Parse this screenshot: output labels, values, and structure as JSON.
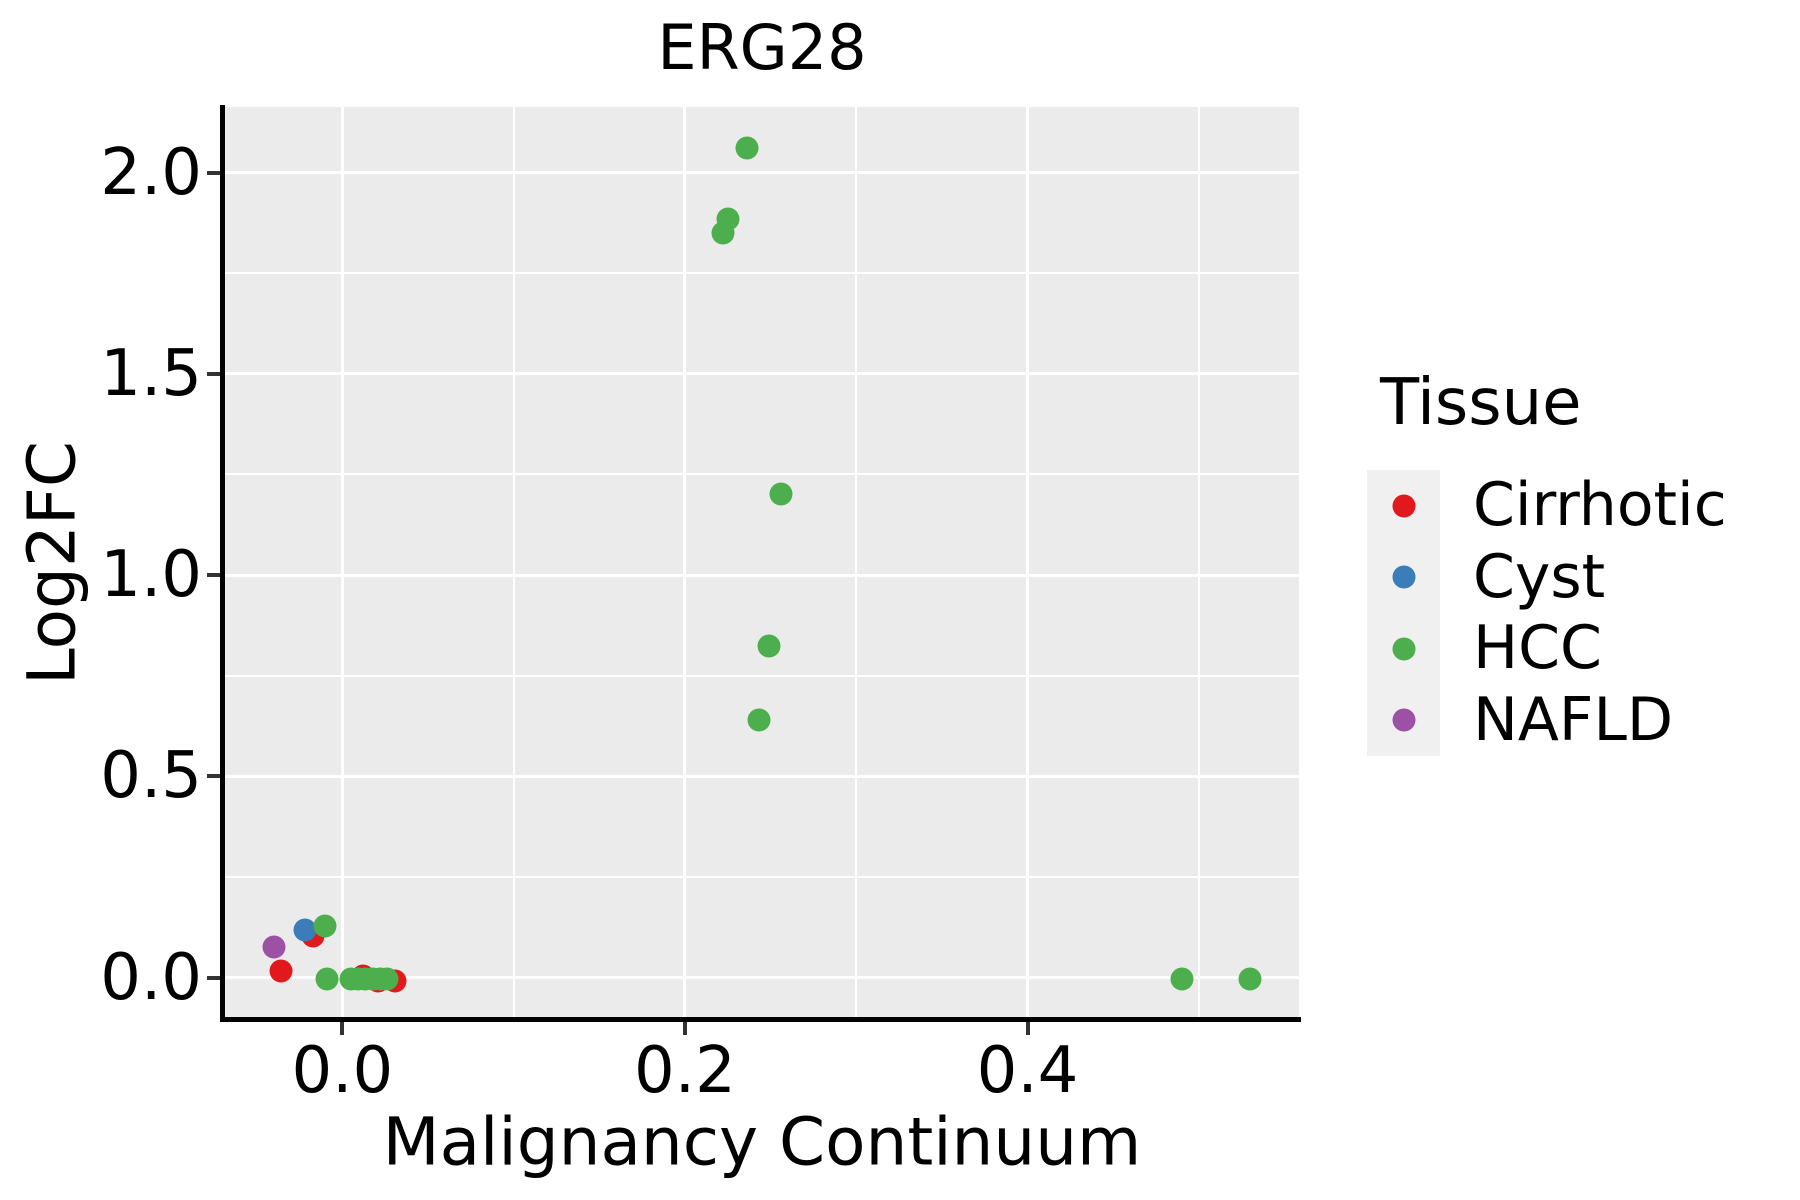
{
  "title": "ERG28",
  "axes": {
    "x": {
      "label": "Malignancy Continuum",
      "tick_labels": [
        "0.0",
        "0.2",
        "0.4"
      ],
      "tick_values": [
        0.0,
        0.2,
        0.4
      ],
      "minor_values": [
        0.1,
        0.3,
        0.5
      ],
      "range": [
        -0.0685,
        0.5585
      ]
    },
    "y": {
      "label": "Log2FC",
      "tick_labels": [
        "0.0",
        "0.5",
        "1.0",
        "1.5",
        "2.0"
      ],
      "tick_values": [
        0.0,
        0.5,
        1.0,
        1.5,
        2.0
      ],
      "minor_values": [
        0.25,
        0.75,
        1.25,
        1.75
      ],
      "range": [
        -0.103,
        2.163
      ]
    }
  },
  "legend": {
    "title": "Tissue",
    "entries": [
      {
        "label": "Cirrhotic",
        "color": "#E2191C"
      },
      {
        "label": "Cyst",
        "color": "#3A7DB8"
      },
      {
        "label": "HCC",
        "color": "#4CAE4C"
      },
      {
        "label": "NAFLD",
        "color": "#9C51A5"
      }
    ]
  },
  "colors": {
    "panel_background": "#EBEBEB",
    "gridline": "#FFFFFF",
    "legend_key_background": "#F0F0F0",
    "axis_line": "#000000",
    "text": "#000000"
  },
  "chart_data": {
    "type": "scatter",
    "title": "ERG28",
    "xlabel": "Malignancy Continuum",
    "ylabel": "Log2FC",
    "xlim": [
      -0.0685,
      0.5585
    ],
    "ylim": [
      -0.103,
      2.163
    ],
    "x_major_ticks": [
      0.0,
      0.2,
      0.4
    ],
    "y_major_ticks": [
      0.0,
      0.5,
      1.0,
      1.5,
      2.0
    ],
    "grid": true,
    "legend_title": "Tissue",
    "legend_position": "right",
    "series": [
      {
        "name": "Cirrhotic",
        "color": "#E2191C",
        "points": [
          [
            -0.036,
            0.016
          ],
          [
            -0.017,
            0.103
          ],
          [
            0.012,
            0.005
          ],
          [
            0.021,
            -0.008
          ],
          [
            0.031,
            -0.008
          ]
        ]
      },
      {
        "name": "Cyst",
        "color": "#3A7DB8",
        "points": [
          [
            -0.022,
            0.118
          ]
        ]
      },
      {
        "name": "HCC",
        "color": "#4CAE4C",
        "points": [
          [
            -0.01,
            0.128
          ],
          [
            -0.009,
            -0.004
          ],
          [
            0.005,
            -0.004
          ],
          [
            0.009,
            -0.004
          ],
          [
            0.013,
            -0.004
          ],
          [
            0.018,
            -0.004
          ],
          [
            0.022,
            -0.004
          ],
          [
            0.026,
            -0.004
          ],
          [
            0.222,
            1.85
          ],
          [
            0.225,
            1.885
          ],
          [
            0.236,
            2.06
          ],
          [
            0.243,
            0.641
          ],
          [
            0.249,
            0.825
          ],
          [
            0.256,
            1.202
          ],
          [
            0.49,
            -0.004
          ],
          [
            0.53,
            -0.004
          ]
        ]
      },
      {
        "name": "NAFLD",
        "color": "#9C51A5",
        "points": [
          [
            -0.04,
            0.076
          ]
        ]
      }
    ]
  }
}
